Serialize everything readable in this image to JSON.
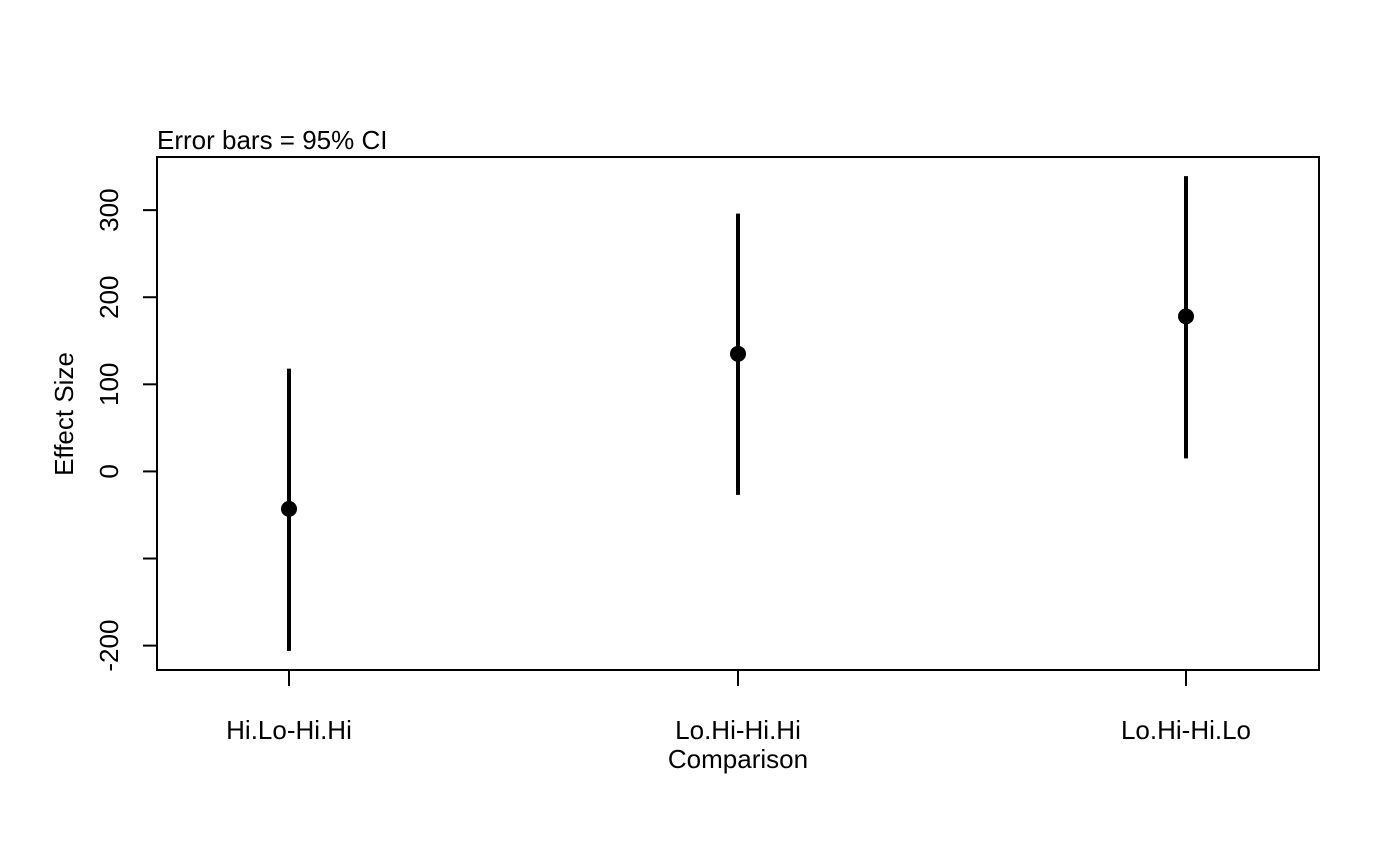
{
  "chart_data": {
    "type": "scatter",
    "subtitle": "Error bars = 95% CI",
    "xlabel": "Comparison",
    "ylabel": "Effect Size",
    "categories": [
      "Hi.Lo-Hi.Hi",
      "Lo.Hi-Hi.Hi",
      "Lo.Hi-Hi.Lo"
    ],
    "series": [
      {
        "values": [
          -43,
          135,
          178
        ],
        "ci_lower": [
          -206,
          -27,
          15
        ],
        "ci_upper": [
          118,
          296,
          339
        ]
      }
    ],
    "yticks": [
      -200,
      -100,
      0,
      100,
      200,
      300
    ],
    "ytick_labels": [
      "-200",
      "",
      "0",
      "100",
      "200",
      "300"
    ],
    "ylim": [
      -228,
      361
    ],
    "grid": false,
    "legend": "none",
    "colors": {
      "point": "#000000",
      "error_bar": "#000000",
      "axis": "#000000"
    }
  }
}
